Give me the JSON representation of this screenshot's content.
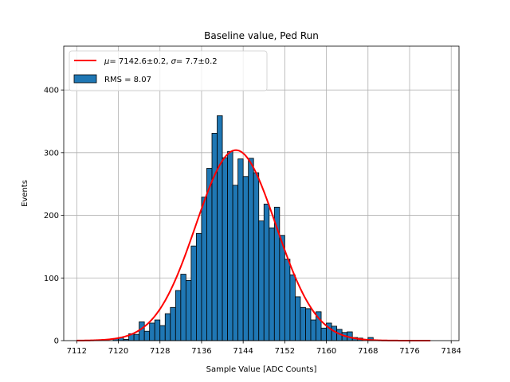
{
  "chart_data": {
    "type": "histogram",
    "title": "Baseline value, Ped Run",
    "xlabel": "Sample Value [ADC Counts]",
    "ylabel": "Events",
    "xlim": [
      7109.5,
      7185.5
    ],
    "ylim": [
      0,
      470
    ],
    "grid": true,
    "legend_position": "top-left",
    "x_ticks": [
      7112,
      7120,
      7128,
      7136,
      7144,
      7152,
      7160,
      7168,
      7176,
      7184
    ],
    "y_ticks": [
      0,
      100,
      200,
      300,
      400
    ],
    "bin_width": 1,
    "bins": {
      "name": "RMS = 8.07",
      "rms": 8.07,
      "color": "#1f77b4",
      "edgecolor": "#000000",
      "left_edges": [
        7119,
        7120,
        7121,
        7122,
        7123,
        7124,
        7125,
        7126,
        7127,
        7128,
        7129,
        7130,
        7131,
        7132,
        7133,
        7134,
        7135,
        7136,
        7137,
        7138,
        7139,
        7140,
        7141,
        7142,
        7143,
        7144,
        7145,
        7146,
        7147,
        7148,
        7149,
        7150,
        7151,
        7152,
        7153,
        7154,
        7155,
        7156,
        7157,
        7158,
        7159,
        7160,
        7161,
        7162,
        7163,
        7164,
        7165,
        7166,
        7168
      ],
      "counts": [
        3,
        5,
        2,
        11,
        10,
        30,
        15,
        28,
        33,
        24,
        43,
        53,
        80,
        106,
        96,
        151,
        171,
        229,
        275,
        331,
        359,
        292,
        302,
        248,
        290,
        262,
        291,
        268,
        191,
        218,
        180,
        213,
        168,
        130,
        105,
        70,
        53,
        51,
        33,
        46,
        20,
        28,
        23,
        18,
        13,
        14,
        5,
        4,
        5
      ]
    },
    "fit": {
      "name": "μ = 7142.6±0.2, σ = 7.7±0.2",
      "mu": 7142.6,
      "mu_err": 0.2,
      "sigma": 7.7,
      "sigma_err": 0.2,
      "amplitude": 304,
      "x_range": [
        7112,
        7180
      ],
      "color": "#ff0000"
    }
  },
  "legend": {
    "fit_prefix": "= 7142.6±0.2, ",
    "fit_suffix": "= 7.7±0.2",
    "mu_symbol": "μ",
    "sigma_symbol": "σ",
    "rms_label": "RMS = 8.07"
  }
}
